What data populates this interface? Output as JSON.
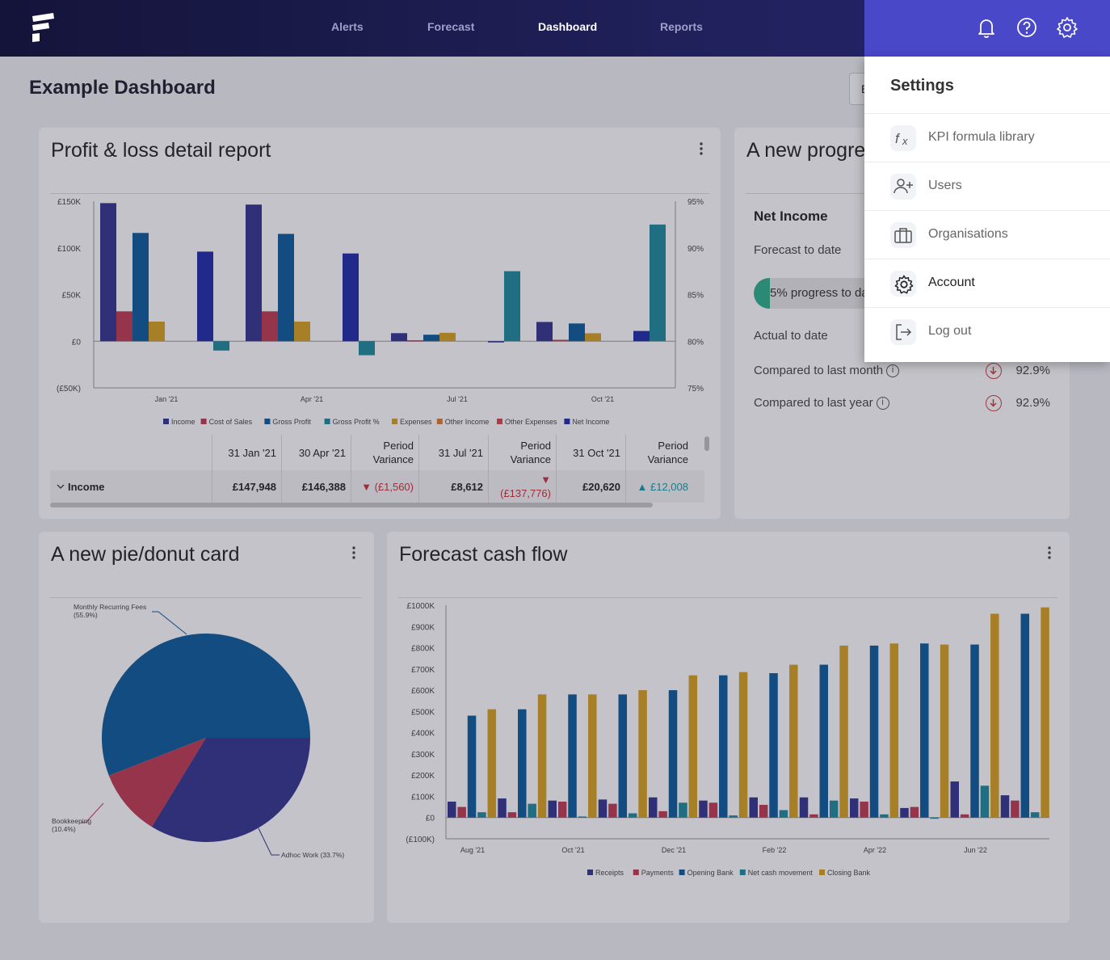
{
  "topbar": {
    "nav": [
      {
        "label": "Alerts",
        "active": false
      },
      {
        "label": "Forecast",
        "active": false
      },
      {
        "label": "Dashboard",
        "active": true
      },
      {
        "label": "Reports",
        "active": false
      }
    ],
    "icons": [
      "bell-icon",
      "help-icon",
      "gear-icon"
    ]
  },
  "page": {
    "title": "Example Dashboard",
    "peek_button_label": "E"
  },
  "pl_card": {
    "title": "Profit & loss detail report",
    "table": {
      "headers": [
        "31 Jan '21",
        "30 Apr '21",
        "Period Variance",
        "31 Jul '21",
        "Period Variance",
        "31 Oct '21",
        "Period Variance"
      ],
      "row_label": "Income",
      "cells": [
        {
          "text": "£147,948",
          "tone": "plain"
        },
        {
          "text": "£146,388",
          "tone": "plain"
        },
        {
          "text": "▼ (£1,560)",
          "tone": "neg"
        },
        {
          "text": "£8,612",
          "tone": "plain"
        },
        {
          "text": "▼ (£137,776)",
          "tone": "neg"
        },
        {
          "text": "£20,620",
          "tone": "plain"
        },
        {
          "text": "▲ £12,008",
          "tone": "pos"
        }
      ]
    }
  },
  "progress_card": {
    "title": "A new progre",
    "heading": "Net Income",
    "forecast_label": "Forecast to date",
    "progress_text": "5% progress to dat",
    "progress_fraction": 0.05,
    "actual_label": "Actual to date",
    "compare_month_label": "Compared to last month",
    "compare_month_value": "92.9%",
    "compare_year_label": "Compared to last year",
    "compare_year_value": "92.9%"
  },
  "pie_card": {
    "title": "A new pie/donut card"
  },
  "cash_card": {
    "title": "Forecast cash flow"
  },
  "settings_menu": {
    "title": "Settings",
    "items": [
      {
        "label": "KPI formula library",
        "icon": "function-icon"
      },
      {
        "label": "Users",
        "icon": "add-user-icon"
      },
      {
        "label": "Organisations",
        "icon": "briefcase-icon"
      },
      {
        "label": "Account",
        "icon": "gear-icon"
      },
      {
        "label": "Log out",
        "icon": "logout-icon"
      }
    ]
  },
  "chart_data": [
    {
      "type": "bar",
      "title": "",
      "categories": [
        "Jan '21",
        "Apr '21",
        "Jul '21",
        "Oct '21"
      ],
      "y_ticks": [
        "£150K",
        "£100K",
        "£50K",
        "£0",
        "(£50K)"
      ],
      "y2_ticks": [
        "95%",
        "90%",
        "85%",
        "80%",
        "75%"
      ],
      "ylim": [
        -50000,
        150000
      ],
      "y2lim": [
        75,
        95
      ],
      "legend_position": "bottom",
      "series": [
        {
          "name": "Income",
          "color": "#33348e",
          "values": [
            147948,
            146388,
            8612,
            20620
          ]
        },
        {
          "name": "Cost of Sales",
          "color": "#c03a50",
          "values": [
            32000,
            32000,
            1000,
            1500
          ]
        },
        {
          "name": "Gross Profit",
          "color": "#0b5a9c",
          "values": [
            116000,
            115000,
            7000,
            19000
          ]
        },
        {
          "name": "Gross Profit %",
          "color": "#1d8a9b",
          "values": [
            79,
            78.5,
            87.5,
            92.5
          ],
          "axis": "right"
        },
        {
          "name": "Expenses",
          "color": "#d8a11f",
          "values": [
            21000,
            21000,
            9000,
            8500
          ]
        },
        {
          "name": "Other Income",
          "color": "#e57a2a",
          "values": [
            0,
            0,
            0,
            0
          ]
        },
        {
          "name": "Other Expenses",
          "color": "#d9474d",
          "values": [
            0,
            0,
            0,
            0
          ]
        },
        {
          "name": "Net Income",
          "color": "#1f2aa8",
          "values": [
            96000,
            94000,
            -1000,
            11000
          ]
        }
      ]
    },
    {
      "type": "pie",
      "title": "",
      "slices": [
        {
          "label": "Monthly Recurring Fees",
          "pct_label": "(55.9%)",
          "value": 55.9,
          "color": "#0b5a9c"
        },
        {
          "label": "Adhoc Work",
          "pct_label": "(33.7%)",
          "value": 33.7,
          "color": "#33348e"
        },
        {
          "label": "Bookkeeping",
          "pct_label": "(10.4%)",
          "value": 10.4,
          "color": "#c03a50"
        }
      ]
    },
    {
      "type": "bar",
      "title": "",
      "categories": [
        "Aug '21",
        "Sep '21",
        "Oct '21",
        "Nov '21",
        "Dec '21",
        "Jan '22",
        "Feb '22",
        "Mar '22",
        "Apr '22",
        "May '22",
        "Jun '22",
        "Jul '22"
      ],
      "tick_labels": [
        "Aug '21",
        "Oct '21",
        "Dec '21",
        "Feb '22",
        "Apr '22",
        "Jun '22"
      ],
      "y_ticks": [
        "£1000K",
        "£900K",
        "£800K",
        "£700K",
        "£600K",
        "£500K",
        "£400K",
        "£300K",
        "£200K",
        "£100K",
        "£0",
        "(£100K)"
      ],
      "ylim": [
        -100000,
        1000000
      ],
      "legend_position": "bottom",
      "series": [
        {
          "name": "Receipts",
          "color": "#33348e",
          "values": [
            75000,
            90000,
            80000,
            85000,
            95000,
            80000,
            95000,
            95000,
            90000,
            45000,
            170000,
            105000
          ]
        },
        {
          "name": "Payments",
          "color": "#c03a50",
          "values": [
            50000,
            25000,
            75000,
            65000,
            30000,
            70000,
            60000,
            15000,
            75000,
            50000,
            15000,
            80000
          ]
        },
        {
          "name": "Opening Bank",
          "color": "#0b5a9c",
          "values": [
            480000,
            510000,
            580000,
            580000,
            600000,
            670000,
            680000,
            720000,
            810000,
            820000,
            815000,
            960000
          ]
        },
        {
          "name": "Net cash movement",
          "color": "#1d8a9b",
          "values": [
            25000,
            65000,
            5000,
            20000,
            70000,
            10000,
            35000,
            80000,
            15000,
            -5000,
            150000,
            25000
          ]
        },
        {
          "name": "Closing Bank",
          "color": "#d8a11f",
          "values": [
            510000,
            580000,
            580000,
            600000,
            670000,
            685000,
            720000,
            810000,
            820000,
            815000,
            960000,
            990000
          ]
        }
      ]
    }
  ]
}
